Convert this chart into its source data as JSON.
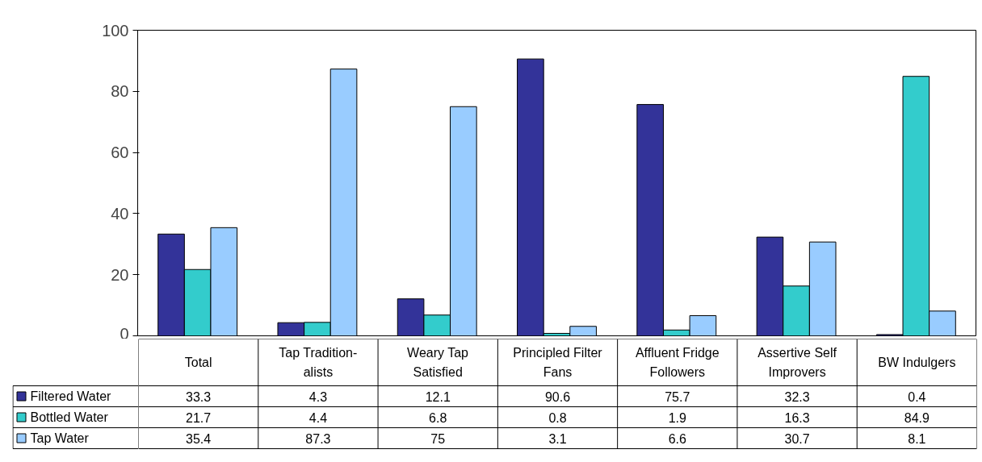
{
  "chart_data": {
    "type": "bar",
    "categories": [
      "Total",
      "Tap Tradition-\nalists",
      "Weary Tap\nSatisfied",
      "Principled Filter\nFans",
      "Affluent Fridge\nFollowers",
      "Assertive Self\nImprovers",
      "BW Indulgers"
    ],
    "series": [
      {
        "name": "Filtered Water",
        "color": "#333399",
        "values": [
          33.3,
          4.3,
          12.1,
          90.6,
          75.7,
          32.3,
          0.4
        ]
      },
      {
        "name": "Bottled Water",
        "color": "#33cccc",
        "values": [
          21.7,
          4.4,
          6.8,
          0.8,
          1.9,
          16.3,
          84.9
        ]
      },
      {
        "name": "Tap Water",
        "color": "#99ccff",
        "values": [
          35.4,
          87.3,
          75,
          3.1,
          6.6,
          30.7,
          8.1
        ]
      }
    ],
    "ylim": [
      0,
      100
    ],
    "yticks": [
      0,
      20,
      40,
      60,
      80,
      100
    ],
    "grid": false,
    "data_labels": true,
    "legend": "bottom left"
  }
}
